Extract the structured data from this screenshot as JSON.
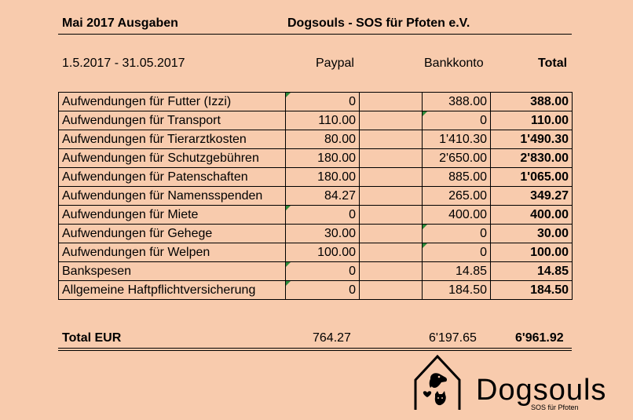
{
  "header": {
    "title": "Mai 2017 Ausgaben",
    "organization": "Dogsouls - SOS für Pfoten e.V."
  },
  "columns": {
    "period": "1.5.2017 - 31.05.2017",
    "paypal": "Paypal",
    "bank": "Bankkonto",
    "total": "Total"
  },
  "rows": [
    {
      "label": "Aufwendungen für Futter (Izzi)",
      "paypal": "0",
      "bank": "388.00",
      "total": "388.00"
    },
    {
      "label": "Aufwendungen für Transport",
      "paypal": "110.00",
      "bank": "0",
      "total": "110.00"
    },
    {
      "label": "Aufwendungen für Tierarztkosten",
      "paypal": "80.00",
      "bank": "1'410.30",
      "total": "1'490.30"
    },
    {
      "label": "Aufwendungen für Schutzgebühren",
      "paypal": "180.00",
      "bank": "2'650.00",
      "total": "2'830.00"
    },
    {
      "label": "Aufwendungen für Patenschaften",
      "paypal": "180.00",
      "bank": "885.00",
      "total": "1'065.00"
    },
    {
      "label": "Aufwendungen für Namensspenden",
      "paypal": "84.27",
      "bank": "265.00",
      "total": "349.27"
    },
    {
      "label": "Aufwendungen für Miete",
      "paypal": "0",
      "bank": "400.00",
      "total": "400.00"
    },
    {
      "label": "Aufwendungen für Gehege",
      "paypal": "30.00",
      "bank": "0",
      "total": "30.00"
    },
    {
      "label": "Aufwendungen für Welpen",
      "paypal": "100.00",
      "bank": "0",
      "total": "100.00"
    },
    {
      "label": "Bankspesen",
      "paypal": "0",
      "bank": "14.85",
      "total": "14.85"
    },
    {
      "label": "Allgemeine Haftpflichtversicherung",
      "paypal": "0",
      "bank": "184.50",
      "total": "184.50"
    }
  ],
  "totals": {
    "label": "Total EUR",
    "paypal": "764.27",
    "bank": "6'197.65",
    "total": "6'961.92"
  },
  "logo": {
    "name": "Dogsouls",
    "tagline": "SOS für Pfoten",
    "icon": "dog-house-icon"
  },
  "colors": {
    "background": "#f8cbad",
    "comment_flag": "#2e8b3a"
  }
}
